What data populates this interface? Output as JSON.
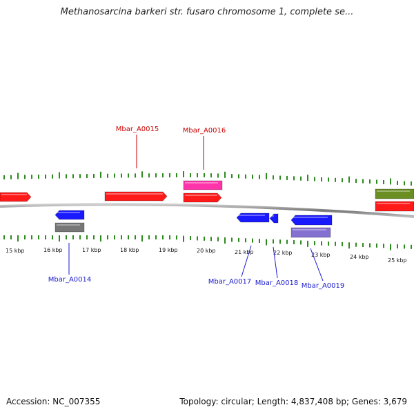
{
  "title": "Methanosarcina barkeri str. fusaro chromosome 1, complete se...",
  "accession": "Accession: NC_007355",
  "summary": "Topology: circular; Length: 4,837,408 bp; Genes: 3,679",
  "colors": {
    "backbone": "#888888",
    "tick": "#2d8a1e",
    "forward_label": "#cc0000",
    "reverse_label": "#1a1acc",
    "red": "#ff1a1a",
    "pink": "#ff33aa",
    "olive": "#6b8e23",
    "blue": "#1a1aff",
    "gray": "#777777",
    "purple": "#8470d0"
  },
  "scale": {
    "labels": [
      "15 kbp",
      "16 kbp",
      "17 kbp",
      "18 kbp",
      "19 kbp",
      "20 kbp",
      "21 kbp",
      "22 kbp",
      "23 kbp",
      "24 kbp",
      "25 kbp"
    ]
  },
  "gene_labels": [
    {
      "name": "Mbar_A0015",
      "strand": "forward"
    },
    {
      "name": "Mbar_A0016",
      "strand": "forward"
    },
    {
      "name": "Mbar_A0014",
      "strand": "reverse"
    },
    {
      "name": "Mbar_A0017",
      "strand": "reverse"
    },
    {
      "name": "Mbar_A0018",
      "strand": "reverse"
    },
    {
      "name": "Mbar_A0019",
      "strand": "reverse"
    }
  ],
  "features": [
    {
      "color": "red",
      "strand": "forward",
      "shape": "arrow"
    },
    {
      "color": "red",
      "strand": "forward",
      "shape": "arrow"
    },
    {
      "color": "pink",
      "strand": "forward",
      "shape": "box"
    },
    {
      "color": "red",
      "strand": "forward",
      "shape": "arrow"
    },
    {
      "color": "olive",
      "strand": "forward",
      "shape": "box"
    },
    {
      "color": "red",
      "strand": "forward",
      "shape": "box"
    },
    {
      "color": "blue",
      "strand": "reverse",
      "shape": "arrow"
    },
    {
      "color": "gray",
      "strand": "reverse",
      "shape": "box"
    },
    {
      "color": "blue",
      "strand": "reverse",
      "shape": "arrow"
    },
    {
      "color": "blue",
      "strand": "reverse",
      "shape": "arrow"
    },
    {
      "color": "blue",
      "strand": "reverse",
      "shape": "arrow"
    },
    {
      "color": "purple",
      "strand": "reverse",
      "shape": "box"
    }
  ]
}
